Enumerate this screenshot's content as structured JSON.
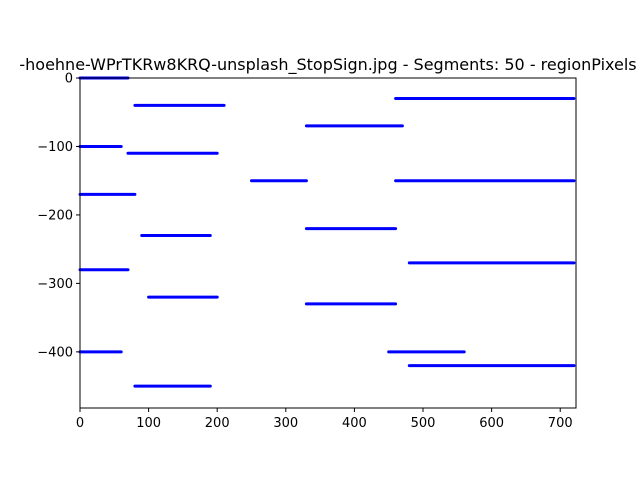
{
  "chart_data": {
    "type": "line",
    "title": "-hoehne-WPrTKRw8KRQ-unsplash_StopSign.jpg - Segments: 50 - regionPixels",
    "xlabel": "",
    "ylabel": "",
    "xlim": [
      0,
      723
    ],
    "ylim": [
      -482,
      0
    ],
    "x_ticks": [
      0,
      100,
      200,
      300,
      400,
      500,
      600,
      700
    ],
    "y_ticks": [
      0,
      -100,
      -200,
      -300,
      -400
    ],
    "grid": false,
    "stroke_color": "#0000ff",
    "background": "#ffffff",
    "series": [
      {
        "x": [
          0,
          70
        ],
        "y": [
          0,
          0
        ]
      },
      {
        "x": [
          80,
          210
        ],
        "y": [
          -40,
          -40
        ]
      },
      {
        "x": [
          0,
          60
        ],
        "y": [
          -100,
          -100
        ]
      },
      {
        "x": [
          70,
          200
        ],
        "y": [
          -110,
          -110
        ]
      },
      {
        "x": [
          0,
          80
        ],
        "y": [
          -170,
          -170
        ]
      },
      {
        "x": [
          90,
          190
        ],
        "y": [
          -230,
          -230
        ]
      },
      {
        "x": [
          0,
          70
        ],
        "y": [
          -280,
          -280
        ]
      },
      {
        "x": [
          100,
          200
        ],
        "y": [
          -320,
          -320
        ]
      },
      {
        "x": [
          0,
          60
        ],
        "y": [
          -400,
          -400
        ]
      },
      {
        "x": [
          80,
          190
        ],
        "y": [
          -450,
          -450
        ]
      },
      {
        "x": [
          330,
          470
        ],
        "y": [
          -70,
          -70
        ]
      },
      {
        "x": [
          250,
          330
        ],
        "y": [
          -150,
          -150
        ]
      },
      {
        "x": [
          330,
          460
        ],
        "y": [
          -220,
          -220
        ]
      },
      {
        "x": [
          330,
          460
        ],
        "y": [
          -330,
          -330
        ]
      },
      {
        "x": [
          450,
          560
        ],
        "y": [
          -400,
          -400
        ]
      },
      {
        "x": [
          460,
          720
        ],
        "y": [
          -30,
          -30
        ]
      },
      {
        "x": [
          460,
          720
        ],
        "y": [
          -150,
          -150
        ]
      },
      {
        "x": [
          480,
          720
        ],
        "y": [
          -270,
          -270
        ]
      },
      {
        "x": [
          480,
          720
        ],
        "y": [
          -420,
          -420
        ]
      }
    ]
  }
}
